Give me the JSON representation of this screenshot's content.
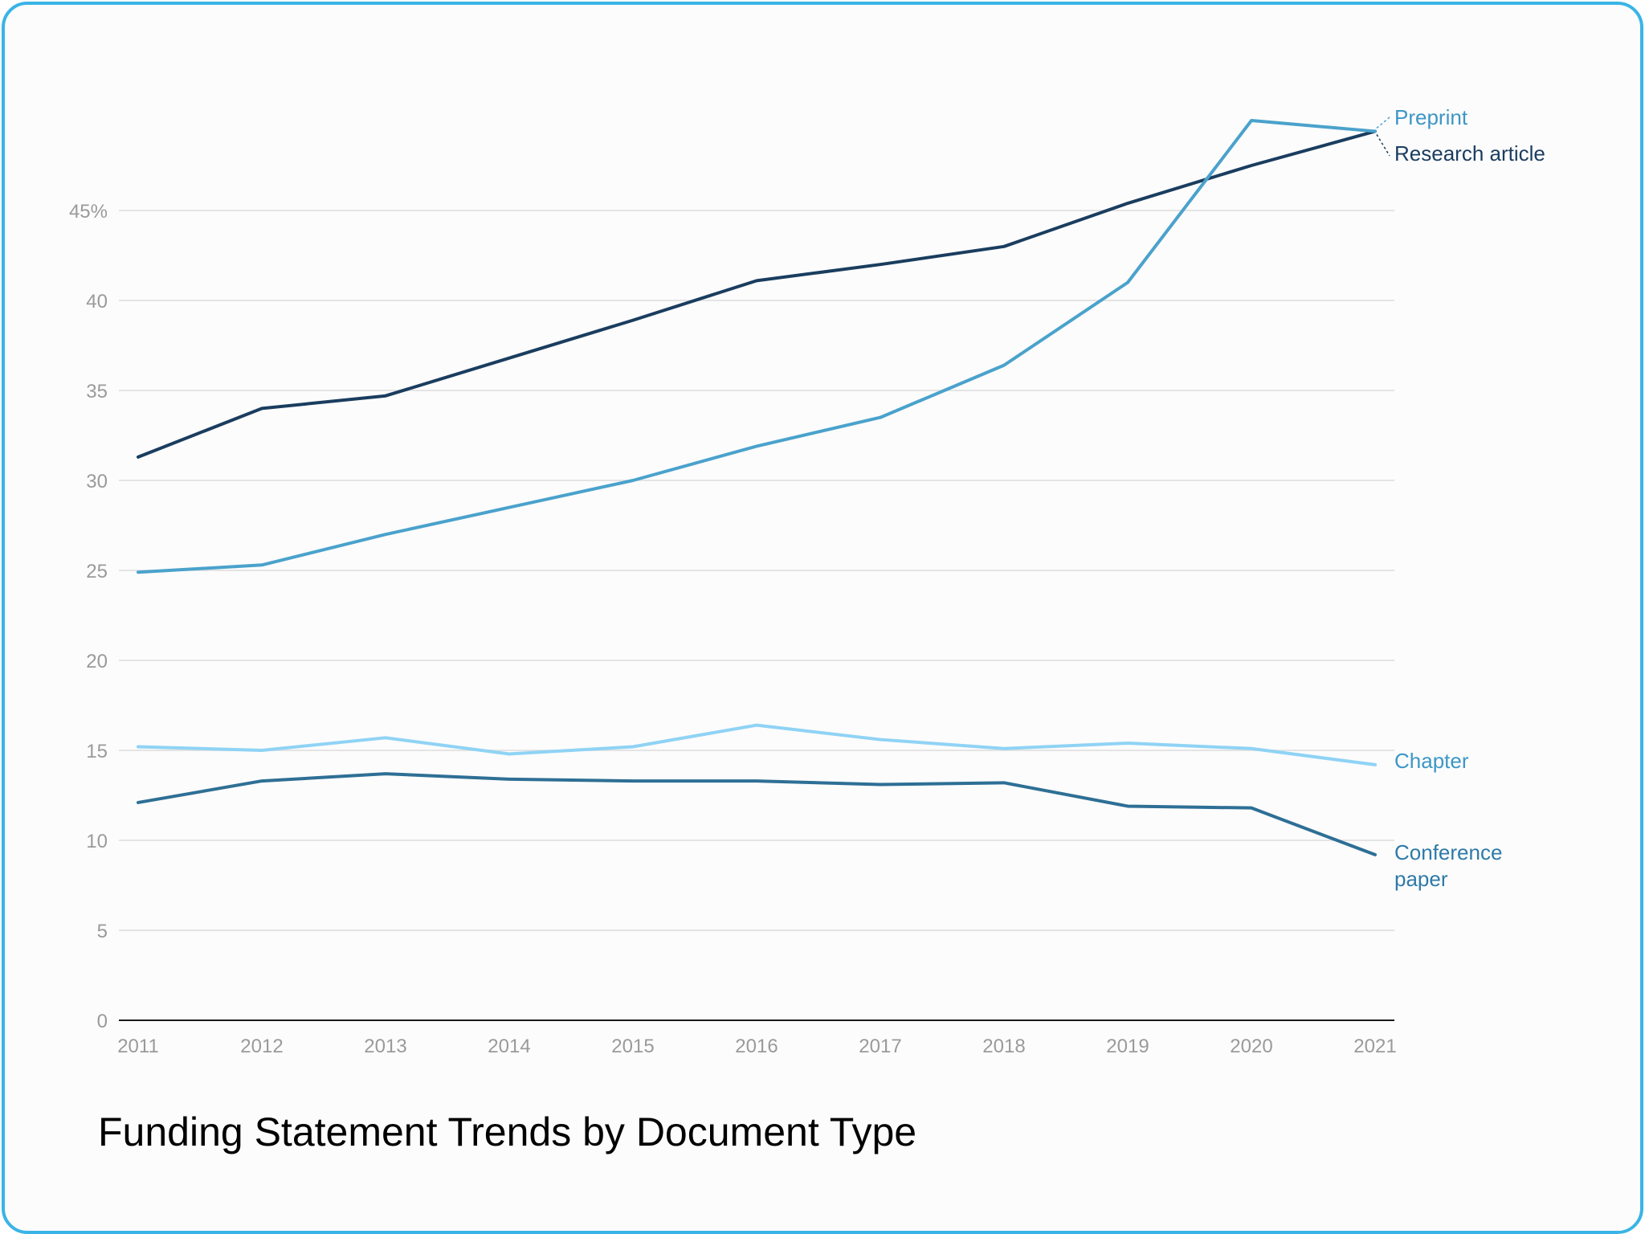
{
  "chart_data": {
    "type": "line",
    "title": "Funding Statement Trends by Document Type",
    "xlabel": "",
    "ylabel": "",
    "x": [
      2011,
      2012,
      2013,
      2014,
      2015,
      2016,
      2017,
      2018,
      2019,
      2020,
      2021
    ],
    "ylim": [
      0,
      50
    ],
    "yticks": [
      0,
      5,
      10,
      15,
      20,
      25,
      30,
      35,
      40,
      45
    ],
    "ytick_labels": [
      "0",
      "5",
      "10",
      "15",
      "20",
      "25",
      "30",
      "35",
      "40",
      "45%"
    ],
    "grid": true,
    "legend": "direct labels at right end of lines",
    "series": [
      {
        "name": "Research article",
        "color": "#1a3d5f",
        "values": [
          31.3,
          34.0,
          34.7,
          36.8,
          38.9,
          41.1,
          42.0,
          43.0,
          45.4,
          47.5,
          49.4
        ]
      },
      {
        "name": "Preprint",
        "color": "#4aa2cc",
        "values": [
          24.9,
          25.3,
          27.0,
          28.5,
          30.0,
          31.9,
          33.5,
          36.4,
          41.0,
          50.0,
          49.4
        ]
      },
      {
        "name": "Chapter",
        "color": "#8fd3f5",
        "values": [
          15.2,
          15.0,
          15.7,
          14.8,
          15.2,
          16.4,
          15.6,
          15.1,
          15.4,
          15.1,
          14.2
        ]
      },
      {
        "name": "Conference paper",
        "color": "#2e6f95",
        "values": [
          12.1,
          13.3,
          13.7,
          13.4,
          13.3,
          13.3,
          13.1,
          13.2,
          11.9,
          11.8,
          9.2
        ]
      }
    ],
    "label_lines": {
      "Research article": [
        "Research article"
      ],
      "Preprint": [
        "Preprint"
      ],
      "Chapter": [
        "Chapter"
      ],
      "Conference paper": [
        "Conference",
        "paper"
      ]
    },
    "label_colors": {
      "Research article": "#1a3d5f",
      "Preprint": "#3d96c6",
      "Chapter": "#3d96c6",
      "Conference paper": "#2e7aa8"
    }
  }
}
